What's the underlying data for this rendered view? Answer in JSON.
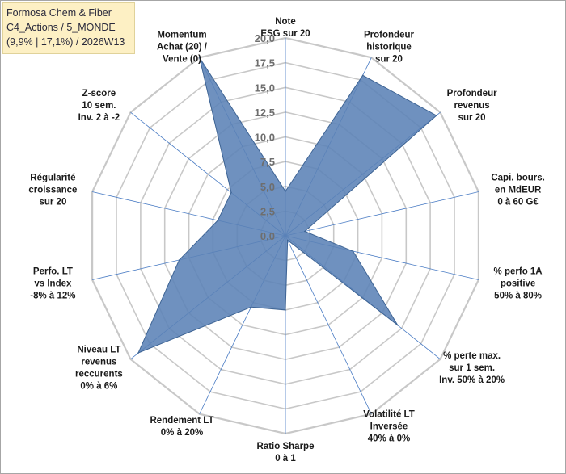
{
  "title_box": {
    "line1": "Formosa Chem & Fiber",
    "line2": "C4_Actions / 5_MONDE",
    "line3": "(9,9% | 17,1%) / 2026W13"
  },
  "chart_data": {
    "type": "radar",
    "rmax": 20,
    "rlim": [
      0,
      20
    ],
    "ticks": [
      "0,0",
      "2,5",
      "5,0",
      "7,5",
      "10,0",
      "12,5",
      "15,0",
      "17,5",
      "20,0"
    ],
    "axes": [
      {
        "label": [
          "Note",
          "ESG sur 20"
        ],
        "value": 4.5
      },
      {
        "label": [
          "Profondeur",
          "historique",
          "sur 20"
        ],
        "value": 18.0
      },
      {
        "label": [
          "Profondeur",
          "revenus",
          "sur 20"
        ],
        "value": 19.5
      },
      {
        "label": [
          "Capi. bours.",
          "en MdEUR",
          "0 à 60 G€"
        ],
        "value": 2.0
      },
      {
        "label": [
          "% perfo 1A",
          "positive",
          "50% à 80%"
        ],
        "value": 7.0
      },
      {
        "label": [
          "% perte max.",
          "sur 1 sem.",
          "Inv. 50% à 20%"
        ],
        "value": 14.5
      },
      {
        "label": [
          "Volatilité LT",
          "Inversée",
          "40% à 0%"
        ],
        "value": 0.5
      },
      {
        "label": [
          "Ratio Sharpe",
          "0 à 1"
        ],
        "value": 7.5
      },
      {
        "label": [
          "Rendement LT",
          "0% à 20%"
        ],
        "value": 8.0
      },
      {
        "label": [
          "Niveau LT",
          "revenus",
          "reccurents",
          "0% à 6%"
        ],
        "value": 19.0
      },
      {
        "label": [
          "Perfo. LT",
          "vs Index",
          "-8% à 12%"
        ],
        "value": 11.0
      },
      {
        "label": [
          "Régularité",
          "croissance",
          "sur 20"
        ],
        "value": 7.0
      },
      {
        "label": [
          "Z-score",
          "10 sem.",
          "Inv. 2 à -2"
        ],
        "value": 7.0
      },
      {
        "label": [
          "Momentum",
          "Achat (20) /",
          "Vente (0)"
        ],
        "value": 20.0
      }
    ],
    "colors": {
      "fill": "#5b82b6",
      "stroke": "#3e6494",
      "grid": "#c8c8c8",
      "spoke": "#4a7cc4"
    }
  }
}
